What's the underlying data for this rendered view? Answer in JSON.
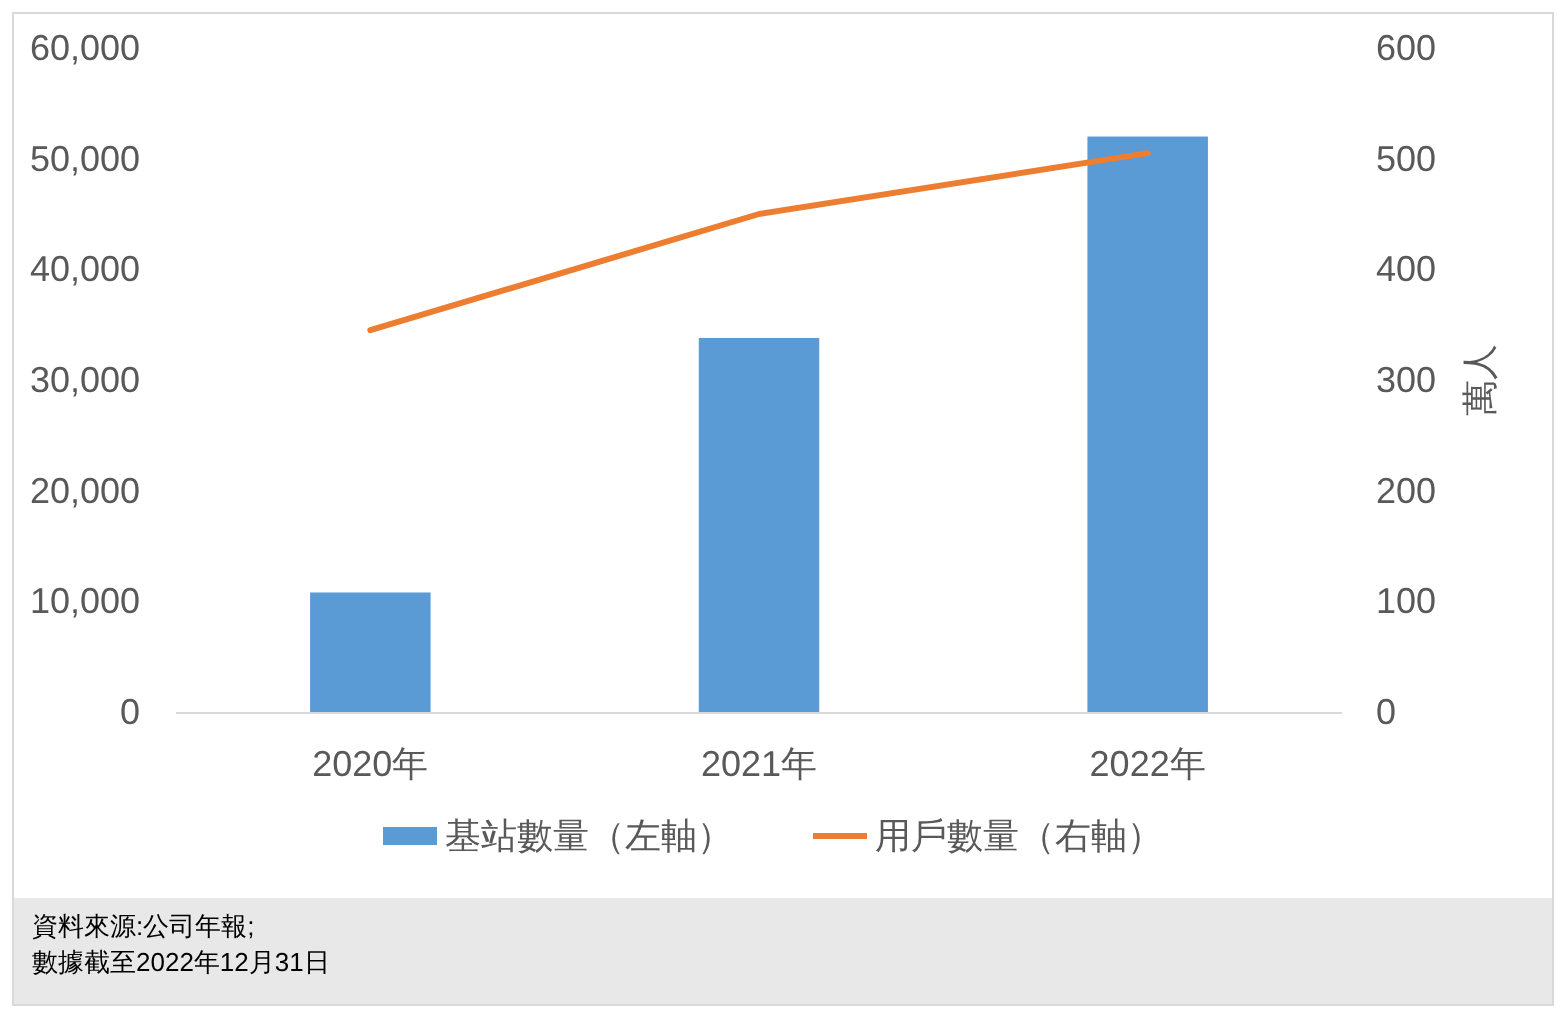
{
  "chart_data": {
    "type": "bar",
    "categories": [
      "2020年",
      "2021年",
      "2022年"
    ],
    "series": [
      {
        "name": "基站數量（左軸）",
        "color": "#5b9bd5",
        "values": [
          10800,
          33800,
          52000
        ]
      },
      {
        "name": "用戶數量（右軸）",
        "type": "line",
        "axis": "y2",
        "color": "#ed7d31",
        "values": [
          345,
          450,
          505
        ]
      }
    ],
    "ylim": [
      0,
      60000
    ],
    "yticks": [
      {
        "value": 0,
        "label": "0"
      },
      {
        "value": 10000,
        "label": "10,000"
      },
      {
        "value": 20000,
        "label": "20,000"
      },
      {
        "value": 30000,
        "label": "30,000"
      },
      {
        "value": 40000,
        "label": "40,000"
      },
      {
        "value": 50000,
        "label": "50,000"
      },
      {
        "value": 60000,
        "label": "60,000"
      }
    ],
    "y2lim": [
      0,
      600
    ],
    "y2ticks": [
      0,
      100,
      200,
      300,
      400,
      500,
      600
    ],
    "y2label": "萬人",
    "legend": "bottom",
    "annotations": [
      "資料來源:公司年報;",
      "數據截至2022年12月31日"
    ]
  }
}
